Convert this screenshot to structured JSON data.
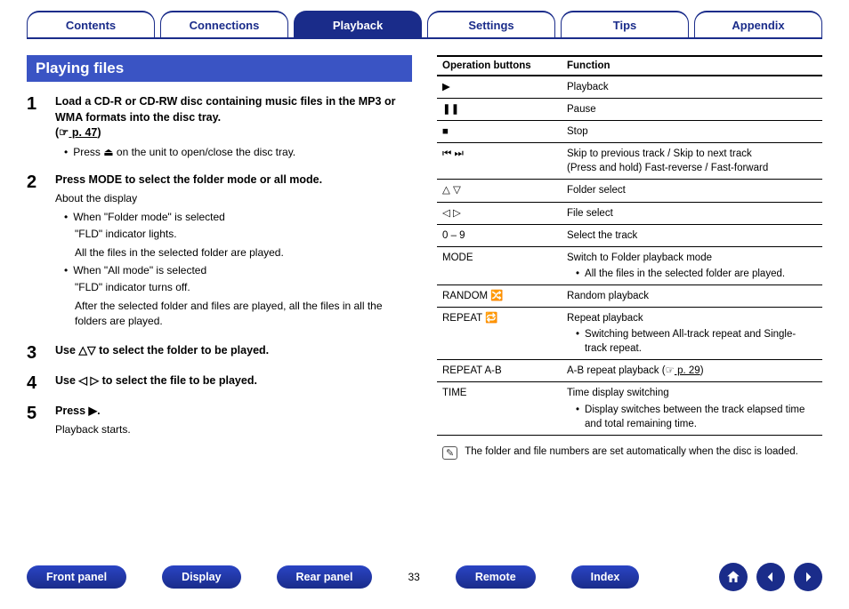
{
  "topnav": {
    "tabs": [
      "Contents",
      "Connections",
      "Playback",
      "Settings",
      "Tips",
      "Appendix"
    ],
    "activeIndex": 2
  },
  "section_title": "Playing files",
  "steps": [
    {
      "num": "1",
      "head_parts": {
        "l1": "Load a CD-R or CD-RW disc containing music files in the MP3 or WMA formats into the disc tray.",
        "l2_prefix": "(",
        "l2_icon": "☞",
        "l2_link": " p. 47",
        "l2_suffix": ")"
      },
      "sub_bullets": [
        {
          "pre": "Press ",
          "icon": "⏏",
          "post": " on the unit to open/close the disc tray."
        }
      ]
    },
    {
      "num": "2",
      "head": "Press MODE to select the folder mode or all mode.",
      "about": "About the display",
      "items": [
        {
          "bullet": "When \"Folder mode\" is selected",
          "lines": [
            "\"FLD\" indicator lights.",
            "All the files in the selected folder are played."
          ]
        },
        {
          "bullet": "When \"All mode\" is selected",
          "lines": [
            "\"FLD\" indicator turns off.",
            "After the selected folder and files are played, all the files in all the folders are played."
          ]
        }
      ]
    },
    {
      "num": "3",
      "head_parts": {
        "pre": "Use ",
        "icon": "△▽",
        "post": " to select the folder to be played."
      }
    },
    {
      "num": "4",
      "head_parts": {
        "pre": "Use ",
        "icon": "◁ ▷",
        "post": " to select the file to be played."
      }
    },
    {
      "num": "5",
      "head_parts": {
        "pre": "Press ",
        "icon": "▶",
        "post": "."
      },
      "note": "Playback starts."
    }
  ],
  "op_table": {
    "headers": [
      "Operation buttons",
      "Function"
    ],
    "rows": [
      {
        "btn": "▶",
        "fn": "Playback"
      },
      {
        "btn": "❚❚",
        "fn": "Pause"
      },
      {
        "btn": "■",
        "fn": "Stop"
      },
      {
        "btn": "⏮ ⏭",
        "fn": "Skip to previous track / Skip to next track",
        "fn2": "(Press and hold) Fast-reverse / Fast-forward"
      },
      {
        "btn": "△ ▽",
        "fn": "Folder select"
      },
      {
        "btn": "◁ ▷",
        "fn": "File select"
      },
      {
        "btn": "0 – 9",
        "fn": "Select the track"
      },
      {
        "btn": "MODE",
        "fn": "Switch to Folder playback mode",
        "sub": "All the files in the selected folder are played."
      },
      {
        "btn": "RANDOM 🔀",
        "fn": "Random playback"
      },
      {
        "btn": "REPEAT 🔁",
        "fn": "Repeat playback",
        "sub": "Switching between All-track repeat and Single-track repeat."
      },
      {
        "btn": "REPEAT A-B",
        "fn_parts": {
          "pre": "A-B repeat playback  (",
          "icon": "☞",
          "link": " p. 29",
          "post": ")"
        }
      },
      {
        "btn": "TIME",
        "fn": "Time display switching",
        "sub": "Display switches between the track elapsed time and total remaining time."
      }
    ]
  },
  "note": {
    "icon": "✎",
    "text": "The folder and file numbers are set automatically when the disc is loaded."
  },
  "bottomnav": {
    "buttons": [
      "Front panel",
      "Display",
      "Rear panel",
      "Remote",
      "Index"
    ],
    "pagenum_after_index": 2,
    "pagenum": "33"
  }
}
